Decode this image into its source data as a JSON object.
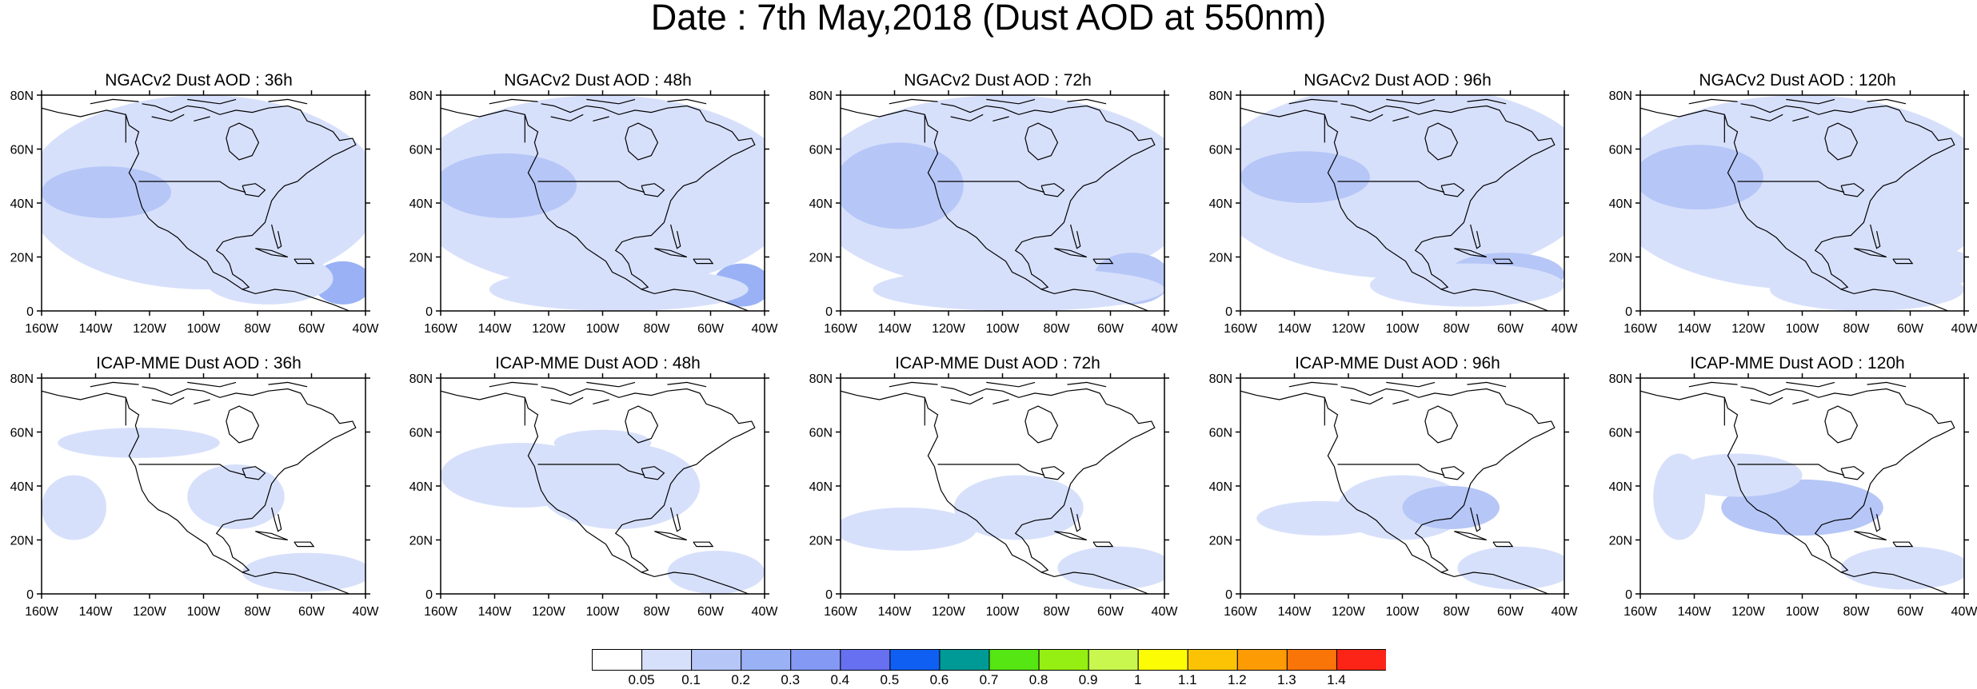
{
  "title": "Date : 7th May,2018 (Dust AOD at 550nm)",
  "axes": {
    "y_labels": [
      "80N",
      "60N",
      "40N",
      "20N",
      "0"
    ],
    "x_labels": [
      "160W",
      "140W",
      "120W",
      "100W",
      "80W",
      "60W",
      "40W"
    ],
    "lon_range": [
      -160,
      -40
    ],
    "lat_range": [
      0,
      80
    ]
  },
  "panels": [
    {
      "title": "NGACv2 Dust AOD : 36h"
    },
    {
      "title": "NGACv2 Dust AOD : 48h"
    },
    {
      "title": "NGACv2 Dust AOD : 72h"
    },
    {
      "title": "NGACv2 Dust AOD : 96h"
    },
    {
      "title": "NGACv2 Dust AOD : 120h"
    },
    {
      "title": "ICAP-MME Dust AOD : 36h"
    },
    {
      "title": "ICAP-MME Dust AOD : 48h"
    },
    {
      "title": "ICAP-MME Dust AOD : 72h"
    },
    {
      "title": "ICAP-MME Dust AOD : 96h"
    },
    {
      "title": "ICAP-MME Dust AOD : 120h"
    }
  ],
  "colorbar": {
    "colors": [
      "#ffffff",
      "#d7e0fb",
      "#b6c6f7",
      "#9ab2f5",
      "#8399f3",
      "#6670f0",
      "#0f5ff2",
      "#009a96",
      "#55e613",
      "#96ef12",
      "#c9f74e",
      "#fcfc05",
      "#fcc305",
      "#fc9b04",
      "#f97507",
      "#fb2417"
    ],
    "labels": [
      "0.05",
      "0.1",
      "0.2",
      "0.3",
      "0.4",
      "0.5",
      "0.6",
      "0.7",
      "0.8",
      "0.9",
      "1",
      "1.1",
      "1.2",
      "1.3",
      "1.4"
    ]
  }
}
